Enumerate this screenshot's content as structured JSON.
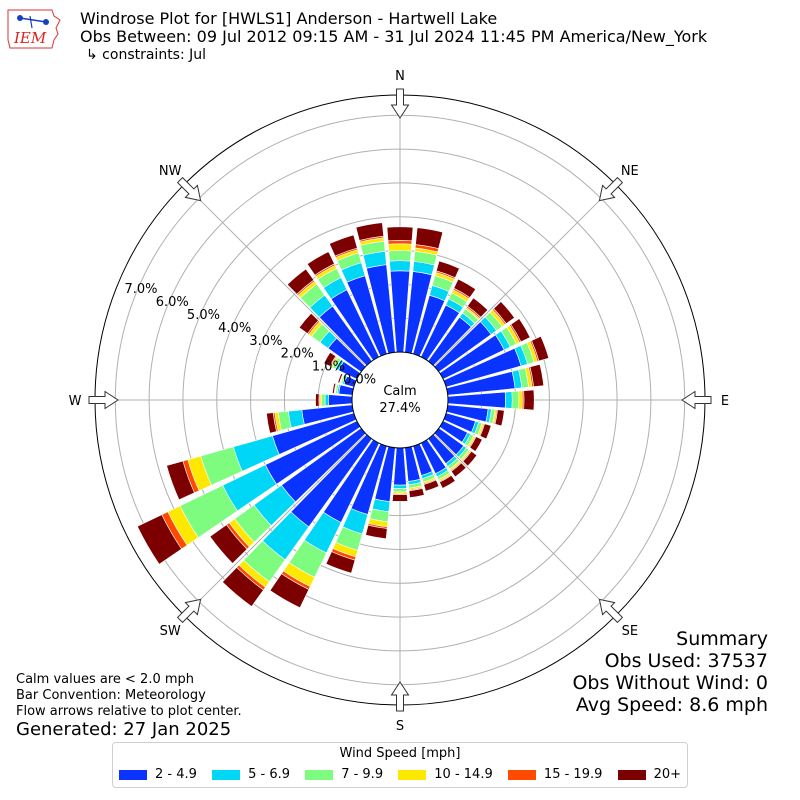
{
  "header": {
    "title_line1": "Windrose Plot for [HWLS1] Anderson - Hartwell Lake",
    "title_line2": "Obs Between: 09 Jul 2012 09:15 AM - 31 Jul 2024 11:45 PM America/New_York",
    "title_line3": "↳ constraints: Jul",
    "logo_text": "IEM"
  },
  "notes": {
    "calm_note": "Calm values are < 2.0 mph",
    "bar_convention": "Bar Convention: Meteorology",
    "flow_note": "Flow arrows relative to plot center.",
    "generated": "Generated: 27 Jan 2025"
  },
  "summary": {
    "title": "Summary",
    "obs_used": "Obs Used: 37537",
    "obs_without_wind": "Obs Without Wind: 0",
    "avg_speed": "Avg Speed: 8.6 mph"
  },
  "chart_data": {
    "type": "windrose",
    "calm_label": "Calm",
    "calm_pct_label": "27.4%",
    "calm_pct": 27.4,
    "radial_ticks": [
      "0.0%",
      "1.0%",
      "2.0%",
      "3.0%",
      "4.0%",
      "5.0%",
      "6.0%",
      "7.0%"
    ],
    "radial_max": 7.6,
    "compass_labels": [
      {
        "label": "N",
        "deg": 0
      },
      {
        "label": "NE",
        "deg": 45
      },
      {
        "label": "E",
        "deg": 90
      },
      {
        "label": "SE",
        "deg": 135
      },
      {
        "label": "S",
        "deg": 180
      },
      {
        "label": "SW",
        "deg": 225
      },
      {
        "label": "W",
        "deg": 270
      },
      {
        "label": "NW",
        "deg": 315
      }
    ],
    "legend_title": "Wind Speed [mph]",
    "bins": [
      {
        "label": "2 - 4.9",
        "color": "#0a33ff"
      },
      {
        "label": "5 - 6.9",
        "color": "#00d6f5"
      },
      {
        "label": "7 - 9.9",
        "color": "#7dfc80"
      },
      {
        "label": "10 - 14.9",
        "color": "#ffe800"
      },
      {
        "label": "15 - 19.9",
        "color": "#ff4a00"
      },
      {
        "label": "20+",
        "color": "#7d0000"
      }
    ],
    "sector_width_deg": 10,
    "sectors": [
      {
        "dir": 0,
        "values": [
          2.4,
          0.3,
          0.3,
          0.2,
          0.1,
          0.4
        ]
      },
      {
        "dir": 10,
        "values": [
          2.4,
          0.3,
          0.3,
          0.1,
          0.1,
          0.5
        ]
      },
      {
        "dir": 20,
        "values": [
          1.8,
          0.3,
          0.3,
          0.1,
          0.05,
          0.3
        ]
      },
      {
        "dir": 30,
        "values": [
          1.7,
          0.2,
          0.2,
          0.1,
          0.05,
          0.3
        ]
      },
      {
        "dir": 40,
        "values": [
          1.6,
          0.15,
          0.15,
          0.05,
          0.05,
          0.3
        ]
      },
      {
        "dir": 50,
        "values": [
          1.9,
          0.2,
          0.2,
          0.1,
          0.05,
          0.3
        ]
      },
      {
        "dir": 60,
        "values": [
          2.0,
          0.2,
          0.2,
          0.1,
          0.05,
          0.3
        ]
      },
      {
        "dir": 70,
        "values": [
          2.3,
          0.2,
          0.2,
          0.1,
          0.05,
          0.3
        ]
      },
      {
        "dir": 80,
        "values": [
          2.0,
          0.2,
          0.2,
          0.1,
          0.05,
          0.3
        ]
      },
      {
        "dir": 90,
        "values": [
          1.7,
          0.2,
          0.2,
          0.1,
          0.05,
          0.3
        ]
      },
      {
        "dir": 100,
        "values": [
          1.2,
          0.1,
          0.1,
          0.05,
          0.03,
          0.2
        ]
      },
      {
        "dir": 110,
        "values": [
          0.9,
          0.1,
          0.1,
          0.05,
          0.03,
          0.2
        ]
      },
      {
        "dir": 120,
        "values": [
          0.8,
          0.1,
          0.1,
          0.05,
          0.03,
          0.2
        ]
      },
      {
        "dir": 130,
        "values": [
          0.9,
          0.1,
          0.1,
          0.05,
          0.03,
          0.2
        ]
      },
      {
        "dir": 140,
        "values": [
          0.9,
          0.1,
          0.1,
          0.05,
          0.03,
          0.2
        ]
      },
      {
        "dir": 150,
        "values": [
          1.0,
          0.1,
          0.1,
          0.05,
          0.03,
          0.2
        ]
      },
      {
        "dir": 160,
        "values": [
          0.9,
          0.1,
          0.1,
          0.05,
          0.03,
          0.2
        ]
      },
      {
        "dir": 170,
        "values": [
          1.0,
          0.1,
          0.1,
          0.05,
          0.03,
          0.2
        ]
      },
      {
        "dir": 180,
        "values": [
          1.1,
          0.1,
          0.1,
          0.05,
          0.03,
          0.2
        ]
      },
      {
        "dir": 190,
        "values": [
          1.6,
          0.3,
          0.3,
          0.15,
          0.05,
          0.3
        ]
      },
      {
        "dir": 200,
        "values": [
          2.1,
          0.6,
          0.5,
          0.2,
          0.1,
          0.4
        ]
      },
      {
        "dir": 210,
        "values": [
          2.6,
          1.0,
          0.8,
          0.3,
          0.1,
          0.6
        ]
      },
      {
        "dir": 220,
        "values": [
          3.2,
          1.2,
          0.8,
          0.2,
          0.1,
          0.6
        ]
      },
      {
        "dir": 230,
        "values": [
          2.9,
          1.0,
          0.7,
          0.2,
          0.1,
          0.6
        ]
      },
      {
        "dir": 240,
        "values": [
          3.0,
          1.4,
          1.4,
          0.4,
          0.2,
          0.8
        ]
      },
      {
        "dir": 250,
        "values": [
          2.5,
          1.2,
          1.0,
          0.4,
          0.15,
          0.5
        ]
      },
      {
        "dir": 260,
        "values": [
          1.5,
          0.4,
          0.3,
          0.1,
          0.05,
          0.2
        ]
      },
      {
        "dir": 270,
        "values": [
          0.7,
          0.1,
          0.1,
          0.05,
          0.03,
          0.1
        ]
      },
      {
        "dir": 280,
        "values": [
          0.4,
          0.05,
          0.05,
          0.02,
          0.02,
          0.05
        ]
      },
      {
        "dir": 290,
        "values": [
          0.3,
          0.05,
          0.05,
          0.02,
          0.02,
          0.05
        ]
      },
      {
        "dir": 300,
        "values": [
          0.6,
          0.1,
          0.1,
          0.05,
          0.03,
          0.2
        ]
      },
      {
        "dir": 310,
        "values": [
          1.2,
          0.3,
          0.3,
          0.1,
          0.05,
          0.3
        ]
      },
      {
        "dir": 320,
        "values": [
          2.0,
          0.4,
          0.4,
          0.1,
          0.05,
          0.4
        ]
      },
      {
        "dir": 330,
        "values": [
          2.2,
          0.4,
          0.3,
          0.1,
          0.05,
          0.4
        ]
      },
      {
        "dir": 340,
        "values": [
          2.4,
          0.4,
          0.3,
          0.1,
          0.05,
          0.4
        ]
      },
      {
        "dir": 350,
        "values": [
          2.6,
          0.4,
          0.3,
          0.1,
          0.05,
          0.4
        ]
      }
    ]
  }
}
